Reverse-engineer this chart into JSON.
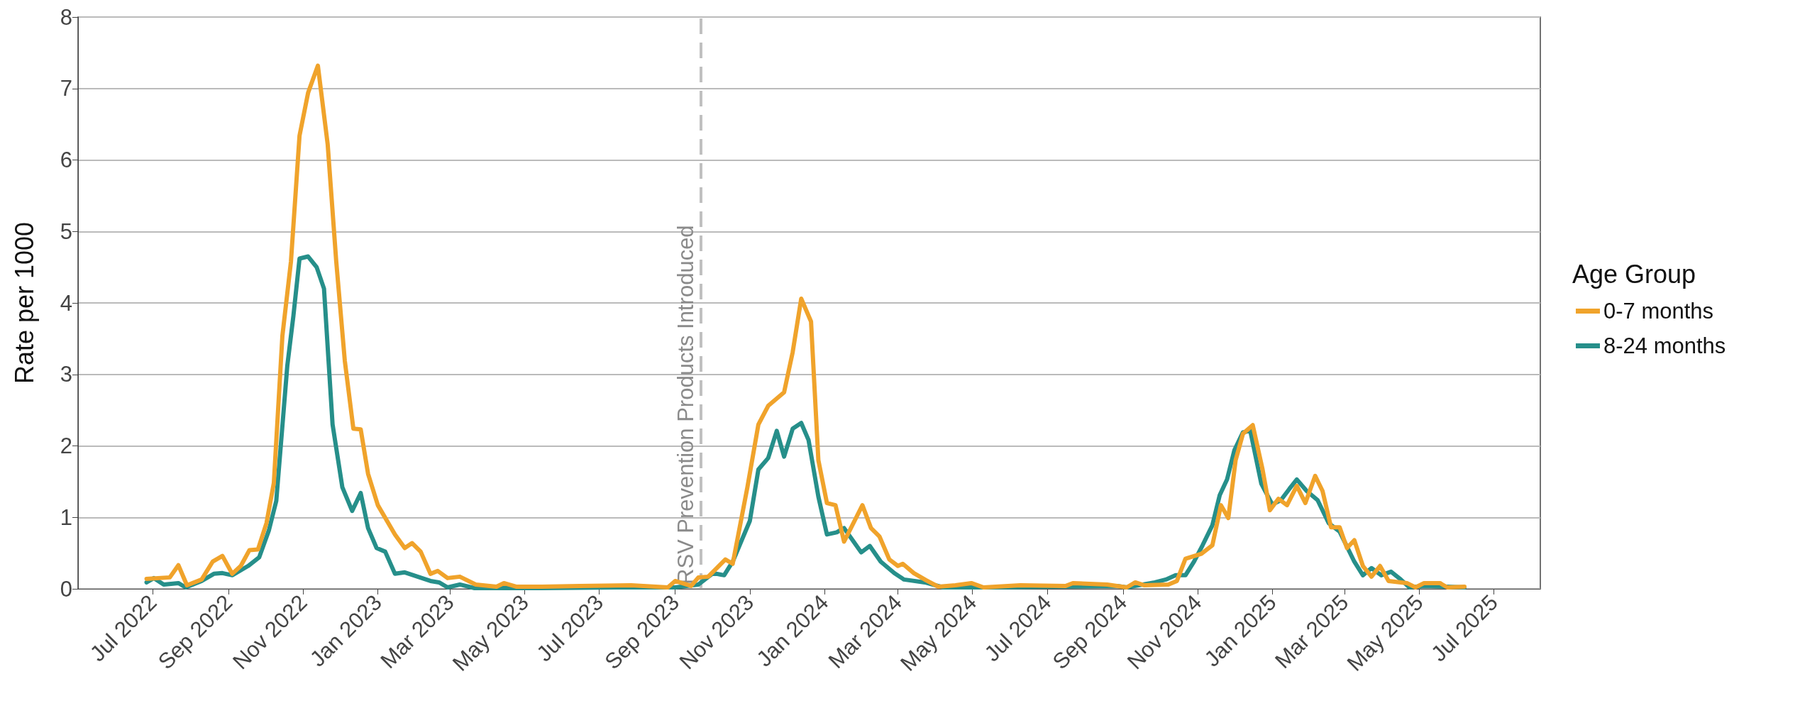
{
  "chart_data": {
    "type": "line",
    "ylabel": "Rate per 1000",
    "legend_title": "Age Group",
    "legend": "right",
    "grid": "y",
    "line_style": "solid",
    "marker": "none",
    "xlim": [
      "2022-05-01",
      "2025-08-08"
    ],
    "xticks": [
      {
        "value": "2022-07",
        "label": "Jul 2022"
      },
      {
        "value": "2022-09",
        "label": "Sep 2022"
      },
      {
        "value": "2022-11",
        "label": "Nov 2022"
      },
      {
        "value": "2023-01",
        "label": "Jan 2023"
      },
      {
        "value": "2023-03",
        "label": "Mar 2023"
      },
      {
        "value": "2023-05",
        "label": "May 2023"
      },
      {
        "value": "2023-07",
        "label": "Jul 2023"
      },
      {
        "value": "2023-09",
        "label": "Sep 2023"
      },
      {
        "value": "2023-11",
        "label": "Nov 2023"
      },
      {
        "value": "2024-01",
        "label": "Jan 2024"
      },
      {
        "value": "2024-03",
        "label": "Mar 2024"
      },
      {
        "value": "2024-05",
        "label": "May 2024"
      },
      {
        "value": "2024-07",
        "label": "Jul 2024"
      },
      {
        "value": "2024-09",
        "label": "Sep 2024"
      },
      {
        "value": "2024-11",
        "label": "Nov 2024"
      },
      {
        "value": "2025-01",
        "label": "Jan 2025"
      },
      {
        "value": "2025-03",
        "label": "Mar 2025"
      },
      {
        "value": "2025-05",
        "label": "May 2025"
      },
      {
        "value": "2025-07",
        "label": "Jul 2025"
      }
    ],
    "ylim": [
      0,
      8
    ],
    "yticks": [
      0,
      1,
      2,
      3,
      4,
      5,
      6,
      7,
      8
    ],
    "ref_lines": [
      {
        "axis": "x",
        "value": "2023-09-22",
        "label": "RSV Prevention Products Introduced",
        "color": "#c0c0c0",
        "line_style": "dashed"
      }
    ],
    "series": [
      {
        "name": "0-7 months",
        "color": "#f0a32b",
        "x": [
          "2022-06-26",
          "2022-07-15",
          "2022-07-22",
          "2022-07-29",
          "2022-08-10",
          "2022-08-19",
          "2022-08-27",
          "2022-09-04",
          "2022-09-11",
          "2022-09-18",
          "2022-09-25",
          "2022-10-02",
          "2022-10-08",
          "2022-10-15",
          "2022-10-22",
          "2022-10-29",
          "2022-11-05",
          "2022-11-13",
          "2022-11-21",
          "2022-11-28",
          "2022-12-05",
          "2022-12-12",
          "2022-12-18",
          "2022-12-24",
          "2023-01-01",
          "2023-01-15",
          "2023-01-23",
          "2023-01-29",
          "2023-02-05",
          "2023-02-13",
          "2023-02-19",
          "2023-02-27",
          "2023-03-09",
          "2023-03-22",
          "2023-04-08",
          "2023-04-14",
          "2023-04-24",
          "2023-05-15",
          "2023-06-15",
          "2023-07-27",
          "2023-08-26",
          "2023-09-01",
          "2023-09-14",
          "2023-09-20",
          "2023-09-28",
          "2023-10-12",
          "2023-10-18",
          "2023-10-30",
          "2023-11-08",
          "2023-11-16",
          "2023-11-29",
          "2023-12-06",
          "2023-12-13",
          "2023-12-21",
          "2023-12-27",
          "2024-01-03",
          "2024-01-10",
          "2024-01-17",
          "2024-02-01",
          "2024-02-08",
          "2024-02-15",
          "2024-02-23",
          "2024-03-01",
          "2024-03-05",
          "2024-03-14",
          "2024-03-24",
          "2024-04-03",
          "2024-04-17",
          "2024-04-30",
          "2024-05-10",
          "2024-06-09",
          "2024-07-16",
          "2024-07-22",
          "2024-08-19",
          "2024-09-04",
          "2024-09-11",
          "2024-09-18",
          "2024-10-08",
          "2024-10-15",
          "2024-10-22",
          "2024-11-04",
          "2024-11-13",
          "2024-11-20",
          "2024-11-26",
          "2024-12-02",
          "2024-12-08",
          "2024-12-16",
          "2024-12-24",
          "2024-12-30",
          "2025-01-06",
          "2025-01-13",
          "2025-01-21",
          "2025-01-28",
          "2025-02-05",
          "2025-02-11",
          "2025-02-18",
          "2025-02-25",
          "2025-03-03",
          "2025-03-09",
          "2025-03-16",
          "2025-03-23",
          "2025-03-30",
          "2025-04-06",
          "2025-04-21",
          "2025-04-28",
          "2025-05-05",
          "2025-05-18",
          "2025-05-24",
          "2025-06-07"
        ],
        "values": [
          0.14,
          0.16,
          0.33,
          0.05,
          0.13,
          0.38,
          0.46,
          0.21,
          0.32,
          0.54,
          0.55,
          0.92,
          1.48,
          3.54,
          4.58,
          6.34,
          6.94,
          7.32,
          6.22,
          4.58,
          3.19,
          2.24,
          2.23,
          1.61,
          1.17,
          0.76,
          0.57,
          0.64,
          0.52,
          0.21,
          0.25,
          0.15,
          0.17,
          0.06,
          0.03,
          0.08,
          0.03,
          0.03,
          0.04,
          0.05,
          0.02,
          0.11,
          0.04,
          0.16,
          0.17,
          0.41,
          0.35,
          1.42,
          2.3,
          2.56,
          2.75,
          3.31,
          4.06,
          3.74,
          1.8,
          1.2,
          1.17,
          0.66,
          1.17,
          0.85,
          0.73,
          0.41,
          0.32,
          0.35,
          0.22,
          0.12,
          0.03,
          0.05,
          0.08,
          0.02,
          0.05,
          0.04,
          0.08,
          0.06,
          0.02,
          0.09,
          0.05,
          0.06,
          0.11,
          0.42,
          0.49,
          0.61,
          1.17,
          0.99,
          1.8,
          2.17,
          2.29,
          1.67,
          1.1,
          1.26,
          1.17,
          1.44,
          1.2,
          1.58,
          1.37,
          0.86,
          0.86,
          0.57,
          0.68,
          0.32,
          0.17,
          0.32,
          0.11,
          0.08,
          0.02,
          0.08,
          0.08,
          0.02,
          0.03
        ]
      },
      {
        "name": "8-24 months",
        "color": "#268f8a",
        "x": [
          "2022-06-26",
          "2022-07-02",
          "2022-07-10",
          "2022-07-22",
          "2022-07-28",
          "2022-08-10",
          "2022-08-20",
          "2022-08-27",
          "2022-09-04",
          "2022-09-17",
          "2022-09-26",
          "2022-10-04",
          "2022-10-10",
          "2022-10-19",
          "2022-10-24",
          "2022-10-29",
          "2022-11-05",
          "2022-11-12",
          "2022-11-18",
          "2022-11-25",
          "2022-12-03",
          "2022-12-11",
          "2022-12-18",
          "2022-12-24",
          "2022-12-31",
          "2023-01-07",
          "2023-01-15",
          "2023-01-23",
          "2023-02-13",
          "2023-02-20",
          "2023-02-27",
          "2023-03-09",
          "2023-03-21",
          "2023-05-15",
          "2023-07-15",
          "2023-09-01",
          "2023-09-20",
          "2023-10-02",
          "2023-10-11",
          "2023-10-18",
          "2023-11-01",
          "2023-11-08",
          "2023-11-16",
          "2023-11-23",
          "2023-11-29",
          "2023-12-06",
          "2023-12-13",
          "2023-12-19",
          "2023-12-27",
          "2024-01-03",
          "2024-01-11",
          "2024-01-17",
          "2024-01-31",
          "2024-02-07",
          "2024-02-16",
          "2024-02-27",
          "2024-03-06",
          "2024-03-23",
          "2024-04-07",
          "2024-05-18",
          "2024-08-27",
          "2024-09-04",
          "2024-09-27",
          "2024-10-06",
          "2024-10-14",
          "2024-10-22",
          "2024-10-29",
          "2024-11-05",
          "2024-11-13",
          "2024-11-19",
          "2024-11-25",
          "2024-12-01",
          "2024-12-08",
          "2024-12-14",
          "2024-12-23",
          "2025-01-01",
          "2025-01-08",
          "2025-01-15",
          "2025-01-21",
          "2025-01-29",
          "2025-02-07",
          "2025-02-16",
          "2025-02-25",
          "2025-03-09",
          "2025-03-16",
          "2025-03-23",
          "2025-03-31",
          "2025-04-08",
          "2025-04-16",
          "2025-04-23",
          "2025-05-05",
          "2025-05-24",
          "2025-06-07"
        ],
        "values": [
          0.09,
          0.15,
          0.06,
          0.08,
          0.02,
          0.11,
          0.21,
          0.22,
          0.19,
          0.32,
          0.44,
          0.82,
          1.23,
          3.12,
          3.82,
          4.62,
          4.65,
          4.5,
          4.2,
          2.3,
          1.42,
          1.09,
          1.34,
          0.85,
          0.57,
          0.52,
          0.21,
          0.23,
          0.11,
          0.09,
          0.02,
          0.06,
          0.01,
          0.01,
          0.02,
          0.02,
          0.06,
          0.22,
          0.19,
          0.38,
          0.95,
          1.67,
          1.83,
          2.21,
          1.85,
          2.24,
          2.32,
          2.08,
          1.29,
          0.76,
          0.79,
          0.85,
          0.51,
          0.6,
          0.38,
          0.22,
          0.13,
          0.09,
          0.02,
          0.02,
          0.04,
          0.02,
          0.09,
          0.13,
          0.19,
          0.19,
          0.38,
          0.61,
          0.89,
          1.31,
          1.53,
          1.94,
          2.19,
          2.21,
          1.47,
          1.18,
          1.24,
          1.4,
          1.53,
          1.37,
          1.24,
          0.92,
          0.8,
          0.38,
          0.19,
          0.29,
          0.19,
          0.24,
          0.13,
          0.02,
          0.04,
          0.03,
          0.02
        ]
      }
    ]
  }
}
